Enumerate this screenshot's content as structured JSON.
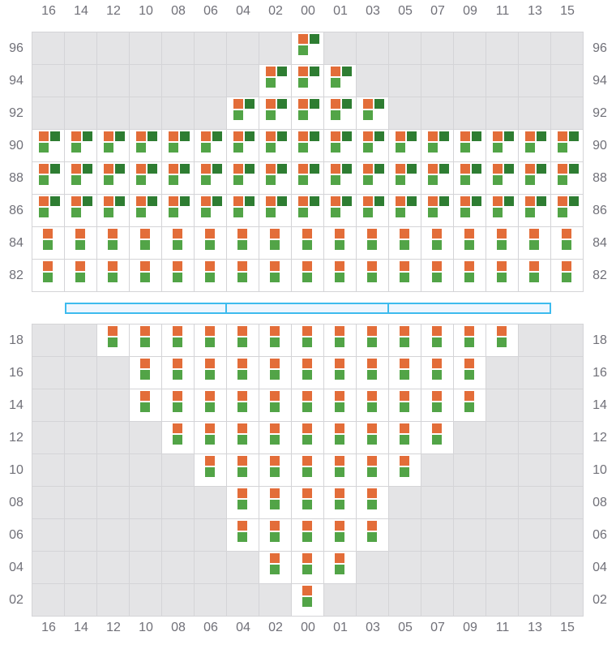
{
  "columns": [
    "16",
    "14",
    "12",
    "10",
    "08",
    "06",
    "04",
    "02",
    "00",
    "01",
    "03",
    "05",
    "07",
    "09",
    "11",
    "13",
    "15"
  ],
  "colors": {
    "orange": "#e36d39",
    "dark_green": "#2e7d32",
    "light_green": "#52a447",
    "unavailable": "#e4e4e6",
    "divider": "#3dbbee"
  },
  "upper_section": [
    {
      "row": "96",
      "active": [
        "00"
      ],
      "type": "three"
    },
    {
      "row": "94",
      "active": [
        "02",
        "00",
        "01"
      ],
      "type": "three"
    },
    {
      "row": "92",
      "active": [
        "04",
        "02",
        "00",
        "01",
        "03"
      ],
      "type": "three"
    },
    {
      "row": "90",
      "active": "all",
      "type": "three"
    },
    {
      "row": "88",
      "active": "all",
      "type": "three"
    },
    {
      "row": "86",
      "active": "all",
      "type": "three"
    },
    {
      "row": "84",
      "active": "all",
      "type": "two"
    },
    {
      "row": "82",
      "active": "all",
      "type": "two"
    }
  ],
  "lower_section": [
    {
      "row": "18",
      "active": [
        "12",
        "10",
        "08",
        "06",
        "04",
        "02",
        "00",
        "01",
        "03",
        "05",
        "07",
        "09",
        "11"
      ],
      "type": "two"
    },
    {
      "row": "16",
      "active": [
        "10",
        "08",
        "06",
        "04",
        "02",
        "00",
        "01",
        "03",
        "05",
        "07",
        "09"
      ],
      "type": "two"
    },
    {
      "row": "14",
      "active": [
        "10",
        "08",
        "06",
        "04",
        "02",
        "00",
        "01",
        "03",
        "05",
        "07",
        "09"
      ],
      "type": "two"
    },
    {
      "row": "12",
      "active": [
        "08",
        "06",
        "04",
        "02",
        "00",
        "01",
        "03",
        "05",
        "07"
      ],
      "type": "two"
    },
    {
      "row": "10",
      "active": [
        "06",
        "04",
        "02",
        "00",
        "01",
        "03",
        "05"
      ],
      "type": "two"
    },
    {
      "row": "08",
      "active": [
        "04",
        "02",
        "00",
        "01",
        "03"
      ],
      "type": "two"
    },
    {
      "row": "06",
      "active": [
        "04",
        "02",
        "00",
        "01",
        "03"
      ],
      "type": "two"
    },
    {
      "row": "04",
      "active": [
        "02",
        "00",
        "01"
      ],
      "type": "two"
    },
    {
      "row": "02",
      "active": [
        "00"
      ],
      "type": "two"
    }
  ],
  "divider_segments": 3
}
